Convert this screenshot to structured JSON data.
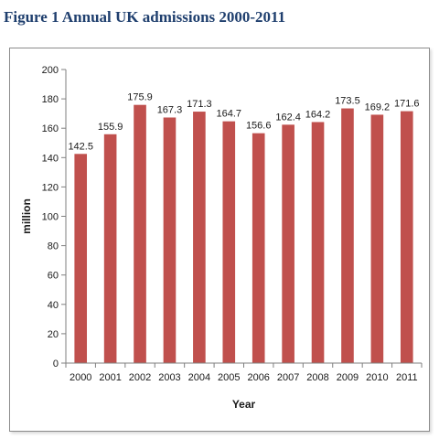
{
  "figure": {
    "title": "Figure 1 Annual UK admissions 2000-2011"
  },
  "chart_data": {
    "type": "bar",
    "title": "",
    "xlabel": "Year",
    "ylabel": "million",
    "ylim": [
      0,
      200
    ],
    "yticks": [
      0,
      20,
      40,
      60,
      80,
      100,
      120,
      140,
      160,
      180,
      200
    ],
    "grid": false,
    "legend": "none",
    "bar_color": "#c0504d",
    "categories": [
      "2000",
      "2001",
      "2002",
      "2003",
      "2004",
      "2005",
      "2006",
      "2007",
      "2008",
      "2009",
      "2010",
      "2011"
    ],
    "values": [
      142.5,
      155.9,
      175.9,
      167.3,
      171.3,
      164.7,
      156.6,
      162.4,
      164.2,
      173.5,
      169.2,
      171.6
    ],
    "value_labels": [
      "142.5",
      "155.9",
      "175.9",
      "167.3",
      "171.3",
      "164.7",
      "156.6",
      "162.4",
      "164.2",
      "173.5",
      "169.2",
      "171.6"
    ]
  }
}
